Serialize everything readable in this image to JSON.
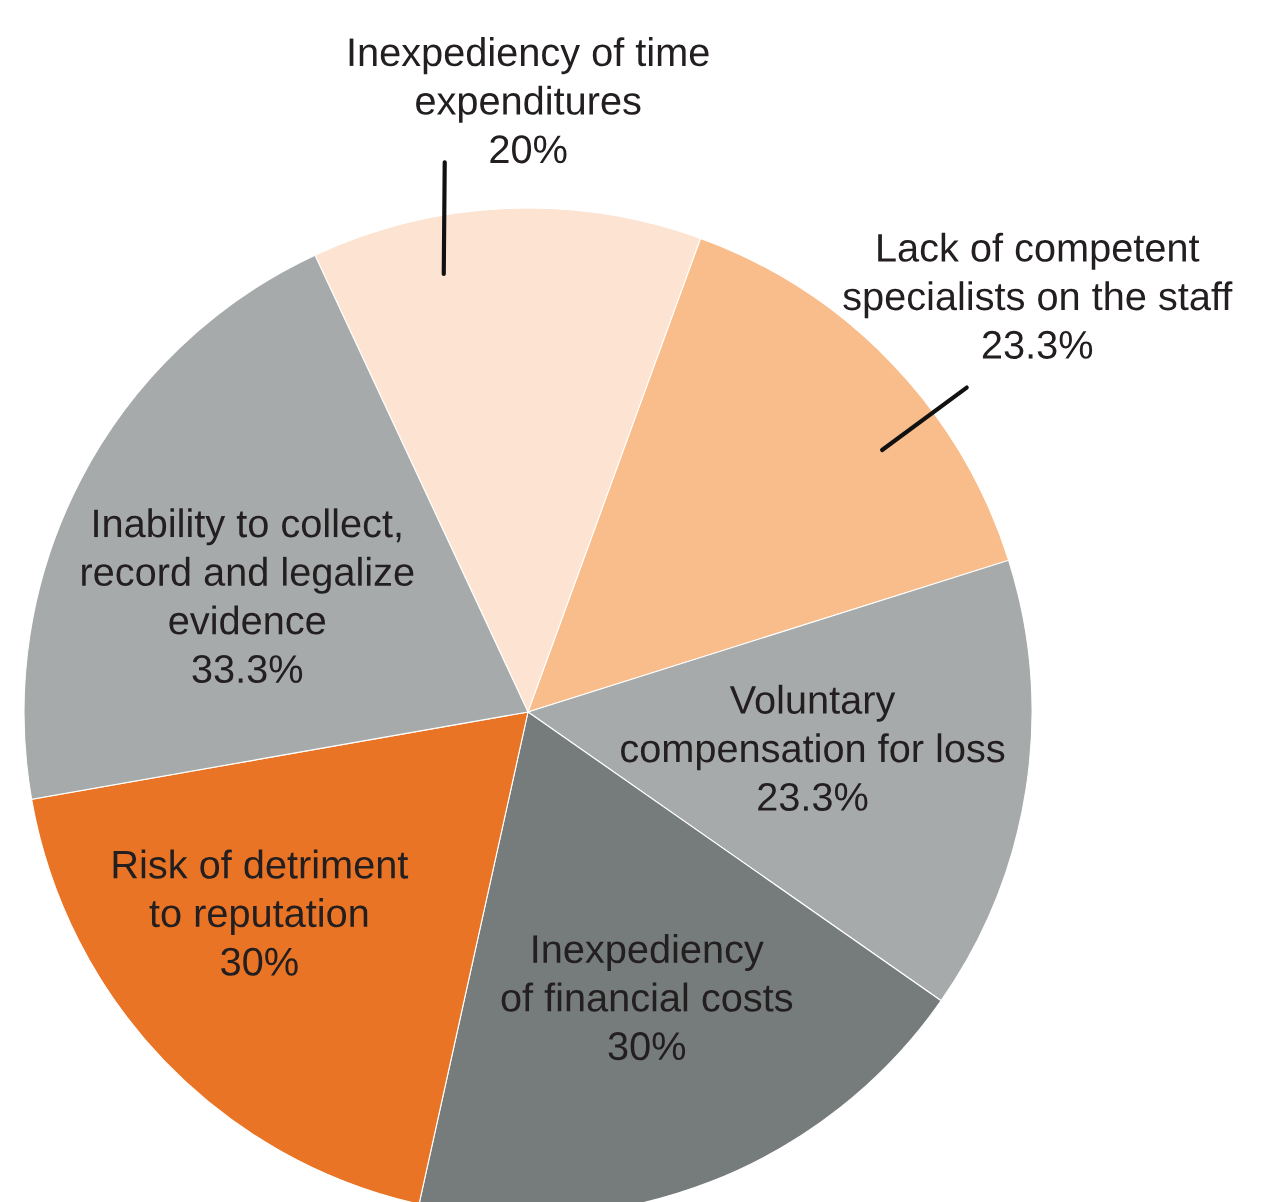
{
  "chart_data": {
    "type": "pie",
    "categories": [
      "Inexpediency of time\nexpenditures",
      "Lack of competent\nspecialists on the staff",
      "Voluntary\ncompensation for loss",
      "Inexpediency\nof financial costs",
      "Risk of detriment\nto reputation",
      "Inability to collect,\nrecord and legalize\nevidence"
    ],
    "values": [
      20,
      23.3,
      23.3,
      30,
      30,
      33.3
    ],
    "value_labels": [
      "20%",
      "23.3%",
      "23.3%",
      "30%",
      "30%",
      "33.3%"
    ],
    "colors": [
      "#fde3d2",
      "#f9bc8b",
      "#a7aaaa",
      "#767c7b",
      "#e97425",
      "#a7aaaa"
    ]
  }
}
